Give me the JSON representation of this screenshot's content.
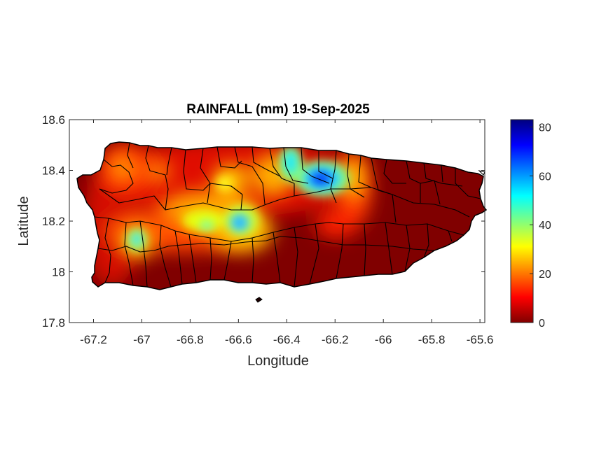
{
  "chart_data": {
    "type": "heatmap",
    "title": "RAINFALL (mm) 19-Sep-2025",
    "xlabel": "Longitude",
    "ylabel": "Latitude",
    "xlim": [
      -67.3,
      -65.58
    ],
    "ylim": [
      17.8,
      18.6
    ],
    "xticks": [
      -67.2,
      -67,
      -66.8,
      -66.6,
      -66.4,
      -66.2,
      -66,
      -65.8,
      -65.6
    ],
    "xtick_labels": [
      "-67.2",
      "-67",
      "-66.8",
      "-66.6",
      "-66.4",
      "-66.2",
      "-66",
      "-65.8",
      "-65.6"
    ],
    "yticks": [
      17.8,
      18,
      18.2,
      18.4,
      18.6
    ],
    "ytick_labels": [
      "17.8",
      "18",
      "18.2",
      "18.4",
      "18.6"
    ],
    "colorbar": {
      "colormap": "jet",
      "range": [
        0,
        83
      ],
      "ticks": [
        0,
        20,
        40,
        60,
        80
      ],
      "tick_labels": [
        "0",
        "20",
        "40",
        "60",
        "80"
      ]
    },
    "region": "Puerto Rico",
    "hotspots": [
      {
        "lon": -66.27,
        "lat": 18.37,
        "value": 80
      },
      {
        "lon": -66.38,
        "lat": 18.43,
        "value": 48
      },
      {
        "lon": -66.6,
        "lat": 18.19,
        "value": 50
      },
      {
        "lon": -67.03,
        "lat": 18.13,
        "value": 50
      },
      {
        "lon": -66.78,
        "lat": 18.2,
        "value": 35
      },
      {
        "lon": -66.66,
        "lat": 18.35,
        "value": 28
      },
      {
        "lon": -66.18,
        "lat": 18.42,
        "value": 28
      },
      {
        "lon": -67.12,
        "lat": 18.4,
        "value": 22
      },
      {
        "lon": -67.05,
        "lat": 18.47,
        "value": 18
      },
      {
        "lon": -66.5,
        "lat": 18.4,
        "value": 25
      },
      {
        "lon": -66.85,
        "lat": 18.32,
        "value": 18
      }
    ],
    "colors": {
      "background": "#800000",
      "borders": "#000000"
    }
  }
}
